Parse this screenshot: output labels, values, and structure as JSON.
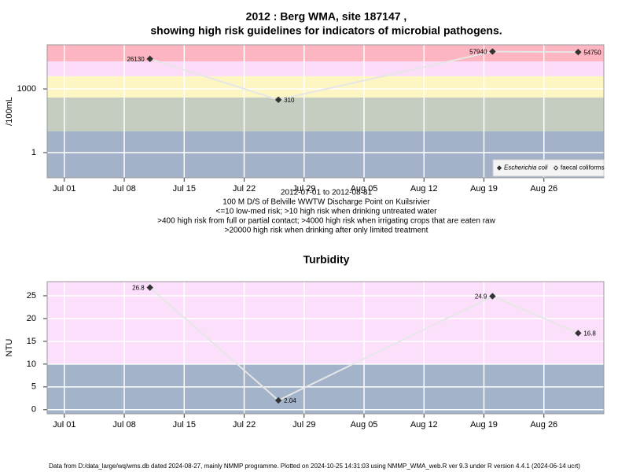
{
  "chart_data": [
    {
      "type": "line",
      "title": [
        "2012 : Berg WMA, site 187147 ,",
        "showing high risk guidelines for indicators of microbial pathogens."
      ],
      "y_label": "/100mL",
      "log_y": true,
      "x": [
        "2012-07-11",
        "2012-07-26",
        "2012-08-20",
        "2012-08-30"
      ],
      "series": [
        {
          "name": "Escherichia coli",
          "color": "#333333",
          "filled": true,
          "values": [
            26130,
            310,
            57940,
            54750
          ]
        },
        {
          "name": "faecal coliforms",
          "color": "#333333",
          "filled": false,
          "values": [
            null,
            null,
            null,
            null
          ]
        }
      ],
      "xlim": [
        "2012-06-29",
        "2012-09-02"
      ],
      "xticks": [
        {
          "value": "2012-07-01",
          "label": "Jul 01"
        },
        {
          "value": "2012-07-08",
          "label": "Jul 08"
        },
        {
          "value": "2012-07-15",
          "label": "Jul 15"
        },
        {
          "value": "2012-07-22",
          "label": "Jul 22"
        },
        {
          "value": "2012-07-29",
          "label": "Jul 29"
        },
        {
          "value": "2012-08-05",
          "label": "Aug 05"
        },
        {
          "value": "2012-08-12",
          "label": "Aug 12"
        },
        {
          "value": "2012-08-19",
          "label": "Aug 19"
        },
        {
          "value": "2012-08-26",
          "label": "Aug 26"
        }
      ],
      "ylim": [
        0.065,
        120000
      ],
      "yticks": [
        1,
        1000
      ],
      "grid": true,
      "legend": "bottom-right",
      "bands": [
        {
          "from": null,
          "to": 10,
          "color": "#a3b2c9"
        },
        {
          "from": 10,
          "to": 400,
          "color": "#c5cdc1"
        },
        {
          "from": 400,
          "to": 4000,
          "color": "#fdf6c3"
        },
        {
          "from": 4000,
          "to": 20000,
          "color": "#fcdcf9"
        },
        {
          "from": 20000,
          "to": null,
          "color": "#fdb6c1"
        }
      ],
      "notes": [
        "2012-07-01 to 2012-08-31",
        "100 M D/S of Belville WWTW Discharge Point on Kuilsrivier",
        "<=10 low-med risk; >10 high risk when drinking untreated water",
        ">400 high risk from full or partial contact; >4000 high risk when irrigating crops that are eaten raw",
        ">20000 high risk when drinking after only limited treatment"
      ]
    },
    {
      "type": "line",
      "title": [
        "Turbidity"
      ],
      "y_label": "NTU",
      "log_y": false,
      "x": [
        "2012-07-11",
        "2012-07-26",
        "2012-08-20",
        "2012-08-30"
      ],
      "series": [
        {
          "name": "Turbidity",
          "color": "#333333",
          "filled": true,
          "values": [
            26.8,
            2.04,
            24.9,
            16.8
          ]
        }
      ],
      "xlim": [
        "2012-06-29",
        "2012-09-02"
      ],
      "xticks": [
        {
          "value": "2012-07-01",
          "label": "Jul 01"
        },
        {
          "value": "2012-07-08",
          "label": "Jul 08"
        },
        {
          "value": "2012-07-15",
          "label": "Jul 15"
        },
        {
          "value": "2012-07-22",
          "label": "Jul 22"
        },
        {
          "value": "2012-07-29",
          "label": "Jul 29"
        },
        {
          "value": "2012-08-05",
          "label": "Aug 05"
        },
        {
          "value": "2012-08-12",
          "label": "Aug 12"
        },
        {
          "value": "2012-08-19",
          "label": "Aug 19"
        },
        {
          "value": "2012-08-26",
          "label": "Aug 26"
        }
      ],
      "ylim": [
        -0.9,
        28.1
      ],
      "yticks": [
        0,
        5,
        10,
        15,
        20,
        25
      ],
      "grid": true,
      "bands": [
        {
          "from": null,
          "to": 10,
          "color": "#a3b3c9"
        },
        {
          "from": 10,
          "to": null,
          "color": "#fce0fb"
        }
      ]
    }
  ],
  "footer": "Data from D:/data_large/wq/wms.db dated 2024-08-27, mainly NMMP programme. Plotted on 2024-10-25 14:31:03 using NMMP_WMA_web.R ver 9.3 under R version 4.4.1 (2024-06-14 ucrt)"
}
